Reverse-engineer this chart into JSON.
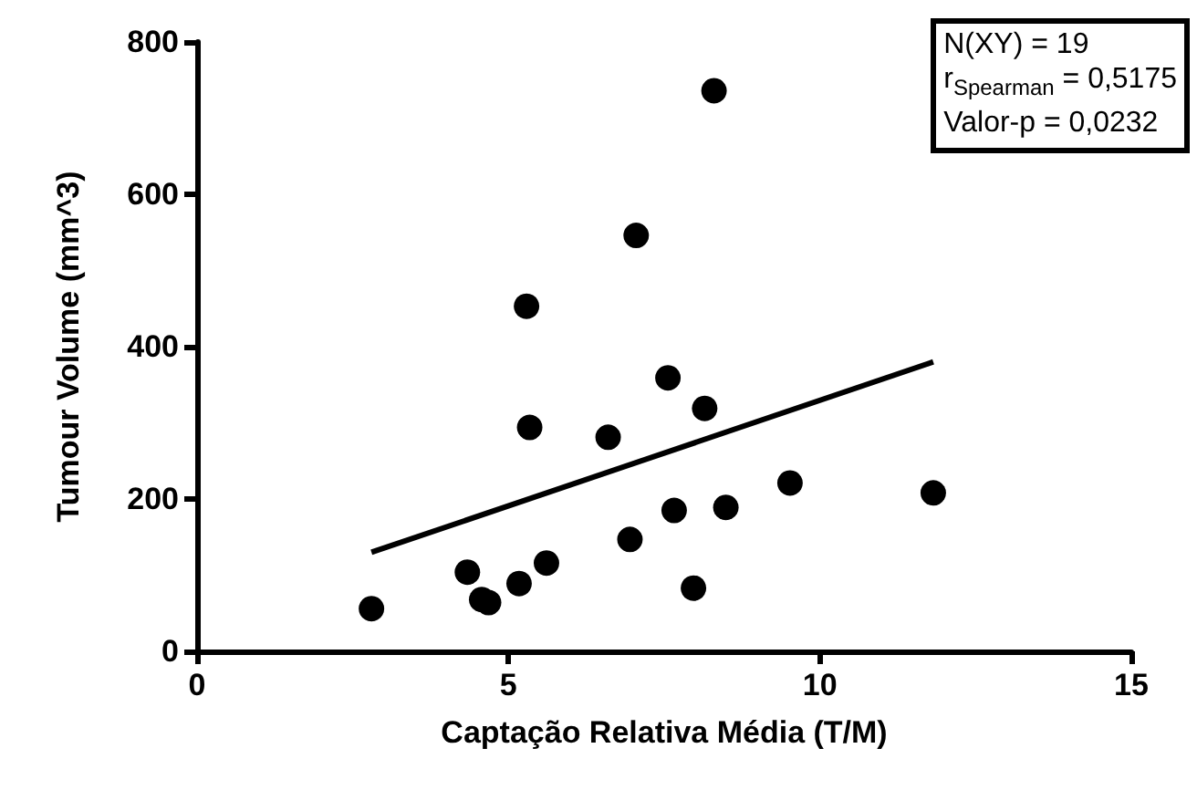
{
  "chart_data": {
    "type": "scatter",
    "xlabel": "Captação Relativa Média (T/M)",
    "ylabel": "Tumour Volume (mm^3)",
    "xlim": [
      0,
      15
    ],
    "xticks": [
      0,
      5,
      10,
      15
    ],
    "ylim": [
      0,
      800
    ],
    "yticks": [
      0,
      200,
      400,
      600,
      800
    ],
    "grid": false,
    "marker": "circle",
    "annotations": [
      "N(XY) = 19",
      "r$_{Spearman}$ = 0,5175",
      "Valor-p = 0,0232"
    ],
    "series": [
      {
        "color": "#000000",
        "x": [
          2.8,
          4.34,
          4.57,
          4.68,
          5.17,
          5.29,
          5.34,
          5.61,
          6.6,
          6.95,
          7.05,
          7.56,
          7.66,
          7.97,
          8.15,
          8.3,
          8.49,
          9.52,
          11.82
        ],
        "values": [
          56,
          104,
          68,
          64,
          89,
          453,
          294,
          116,
          281,
          147,
          546,
          359,
          185,
          83,
          319,
          736,
          189,
          221,
          208
        ]
      },
      {
        "type": "line",
        "color": "#000000",
        "marker": "none",
        "line_style": "solid",
        "x": [
          2.8,
          11.82
        ],
        "values": [
          130,
          380
        ]
      }
    ]
  }
}
